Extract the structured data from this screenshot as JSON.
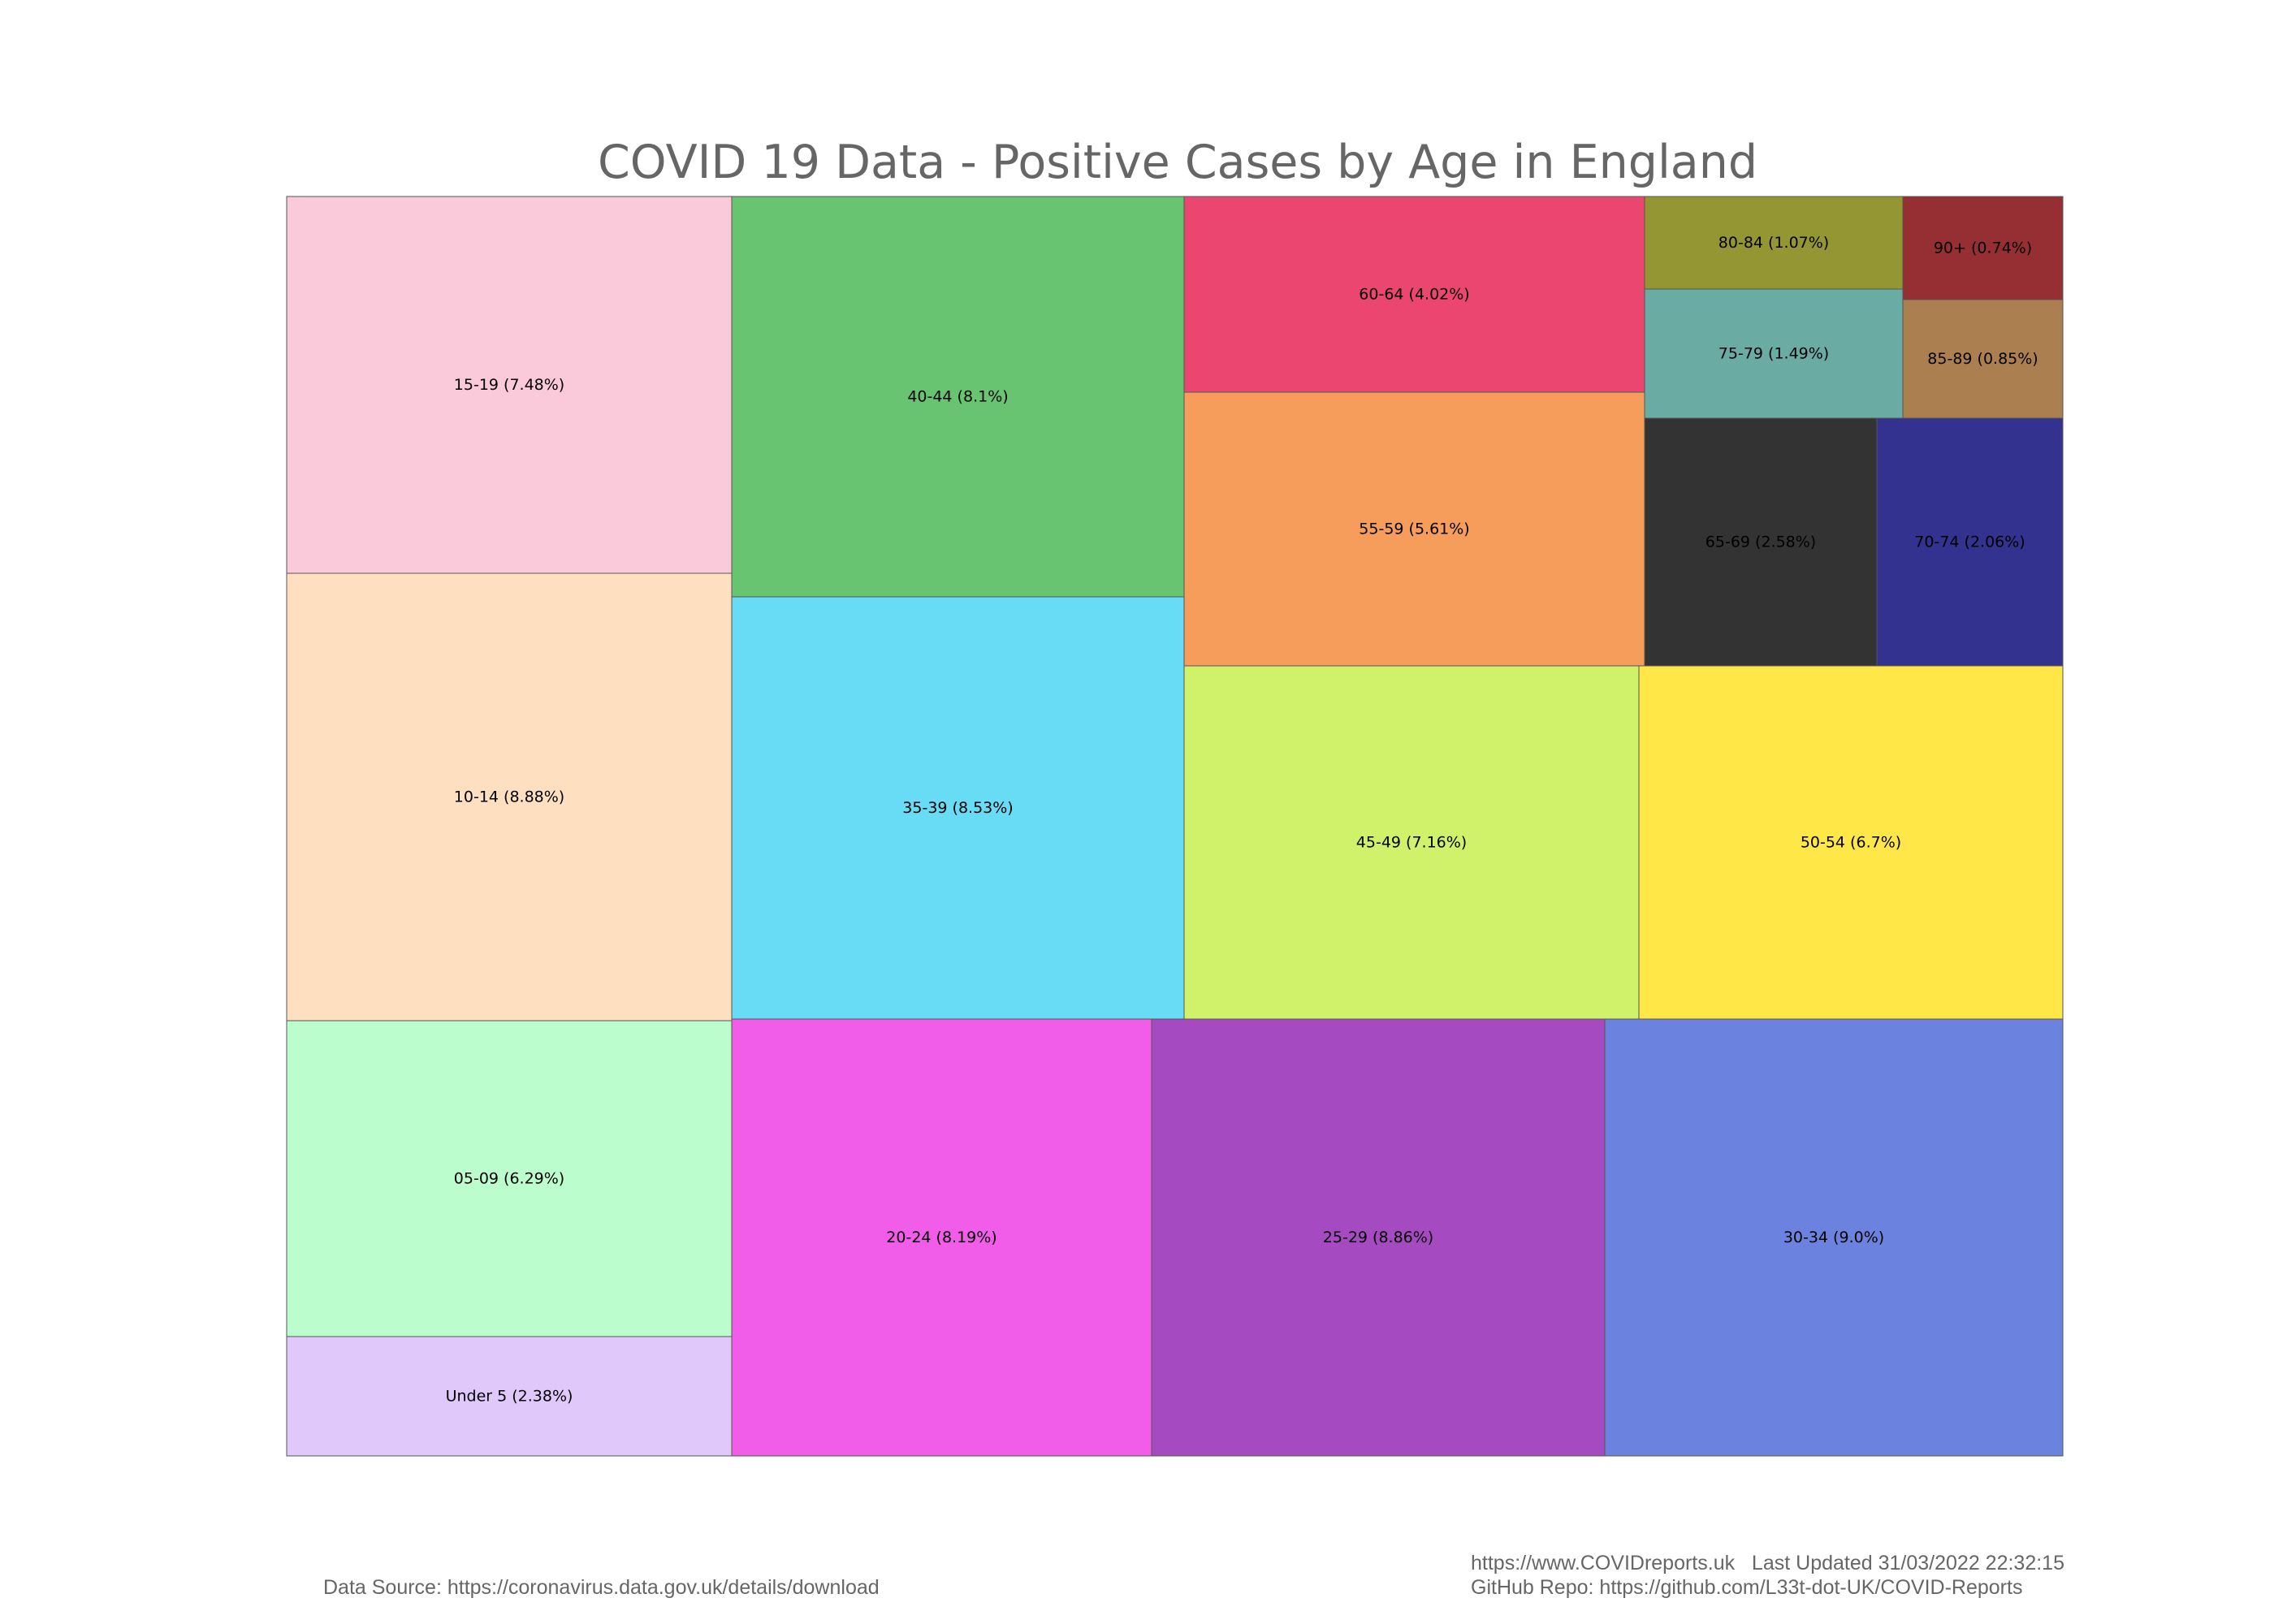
{
  "chart_data": {
    "type": "treemap",
    "title": "COVID 19 Data - Positive Cases by Age in England",
    "tiles": [
      {
        "name": "Under 5",
        "value": 2.38,
        "label": "Under 5 (2.38%)",
        "color": "#e0c8fb"
      },
      {
        "name": "05-09",
        "value": 6.29,
        "label": "05-09 (6.29%)",
        "color": "#bbfdcc"
      },
      {
        "name": "10-14",
        "value": 8.88,
        "label": "10-14 (8.88%)",
        "color": "#fedfc0"
      },
      {
        "name": "15-19",
        "value": 7.48,
        "label": "15-19 (7.48%)",
        "color": "#fac9da"
      },
      {
        "name": "20-24",
        "value": 8.19,
        "label": "20-24 (8.19%)",
        "color": "#f15ce8"
      },
      {
        "name": "25-29",
        "value": 8.86,
        "label": "25-29 (8.86%)",
        "color": "#a54ac1"
      },
      {
        "name": "30-34",
        "value": 9.0,
        "label": "30-34 (9.0%)",
        "color": "#6b83de"
      },
      {
        "name": "35-39",
        "value": 8.53,
        "label": "35-39 (8.53%)",
        "color": "#68dcf4"
      },
      {
        "name": "40-44",
        "value": 8.1,
        "label": "40-44 (8.1%)",
        "color": "#68c471"
      },
      {
        "name": "45-49",
        "value": 7.16,
        "label": "45-49 (7.16%)",
        "color": "#cff26a"
      },
      {
        "name": "50-54",
        "value": 6.7,
        "label": "50-54 (6.7%)",
        "color": "#ffe748"
      },
      {
        "name": "55-59",
        "value": 5.61,
        "label": "55-59 (5.61%)",
        "color": "#f69d5b"
      },
      {
        "name": "60-64",
        "value": 4.02,
        "label": "60-64 (4.02%)",
        "color": "#eb4670"
      },
      {
        "name": "65-69",
        "value": 2.58,
        "label": "65-69 (2.58%)",
        "color": "#333333"
      },
      {
        "name": "70-74",
        "value": 2.06,
        "label": "70-74 (2.06%)",
        "color": "#33338f"
      },
      {
        "name": "75-79",
        "value": 1.49,
        "label": "75-79 (1.49%)",
        "color": "#6aaba4"
      },
      {
        "name": "80-84",
        "value": 1.07,
        "label": "80-84 (1.07%)",
        "color": "#949634"
      },
      {
        "name": "85-89",
        "value": 0.85,
        "label": "85-89 (0.85%)",
        "color": "#ab7f4f"
      },
      {
        "name": "90+",
        "value": 0.74,
        "label": "90+ (0.74%)",
        "color": "#952f33"
      }
    ]
  },
  "footer": {
    "data_source": "Data Source: https://coronavirus.data.gov.uk/details/download",
    "website_updated": "https://www.COVIDreports.uk   Last Updated 31/03/2022 22:32:15",
    "github": "GitHub Repo: https://github.com/L33t-dot-UK/COVID-Reports"
  }
}
